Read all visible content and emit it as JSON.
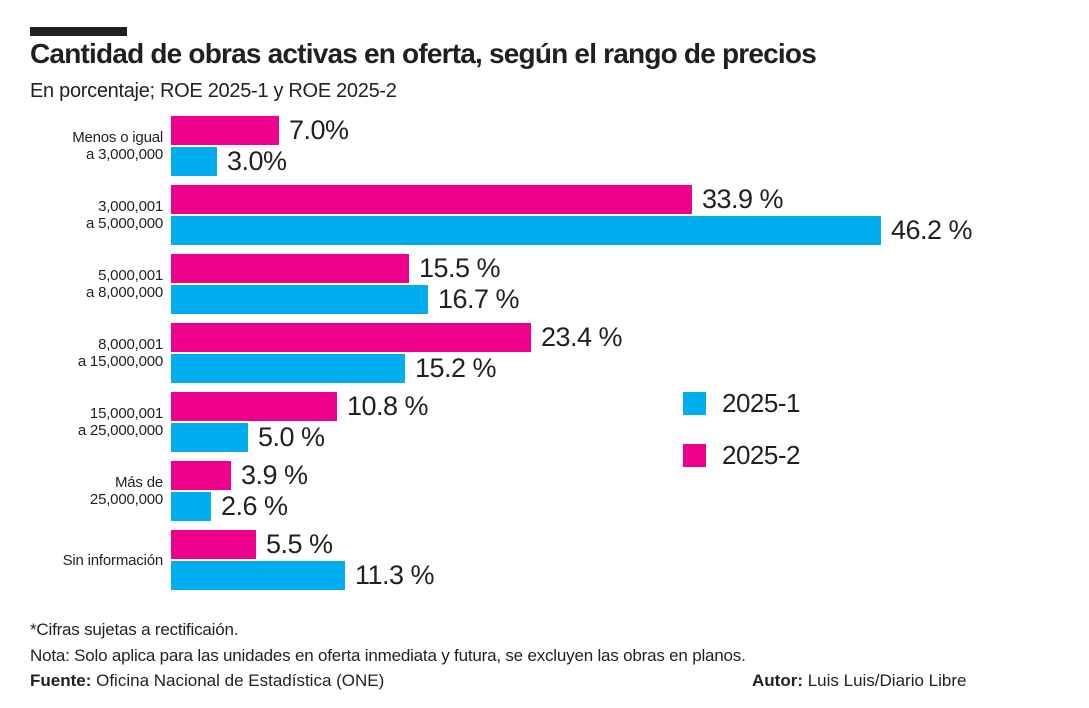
{
  "header": {
    "title": "Cantidad de obras activas en oferta, según el rango de precios",
    "subtitle": "En porcentaje; ROE 2025-1 y ROE 2025-2"
  },
  "colors": {
    "accent_bar": "#231F20",
    "text": "#231F20",
    "series_2025_1": "#00AEEF",
    "series_2025_2": "#EC008C"
  },
  "chart_data": {
    "type": "bar",
    "orientation": "horizontal",
    "title": "Cantidad de obras activas en oferta, según el rango de precios",
    "subtitle": "En porcentaje; ROE 2025-1 y ROE 2025-2",
    "xlim": [
      0,
      48
    ],
    "grid": false,
    "legend_position": "middle-right",
    "categories": [
      {
        "lines": [
          "Menos o igual",
          "a 3,000,000"
        ]
      },
      {
        "lines": [
          "3,000,001",
          "a 5,000,000"
        ]
      },
      {
        "lines": [
          "5,000,001",
          "a 8,000,000"
        ]
      },
      {
        "lines": [
          "8,000,001",
          "a 15,000,000"
        ]
      },
      {
        "lines": [
          "15,000,001",
          "a 25,000,000"
        ]
      },
      {
        "lines": [
          "Más de",
          "25,000,000"
        ]
      },
      {
        "lines": [
          "Sin información"
        ]
      }
    ],
    "series": [
      {
        "name": "2025-2",
        "color": "#EC008C",
        "values": [
          7.0,
          33.9,
          15.5,
          23.4,
          10.8,
          3.9,
          5.5
        ],
        "value_labels": [
          "7.0%",
          "33.9 %",
          "15.5 %",
          "23.4 %",
          "10.8 %",
          "3.9 %",
          "5.5 %"
        ]
      },
      {
        "name": "2025-1",
        "color": "#00AEEF",
        "values": [
          3.0,
          46.2,
          16.7,
          15.2,
          5.0,
          2.6,
          11.3
        ],
        "value_labels": [
          "3.0%",
          "46.2 %",
          "16.7 %",
          "15.2 %",
          "5.0 %",
          "2.6 %",
          "11.3 %"
        ]
      }
    ]
  },
  "legend": {
    "items": [
      {
        "label": "2025-1",
        "color": "#00AEEF"
      },
      {
        "label": "2025-2",
        "color": "#EC008C"
      }
    ]
  },
  "footer": {
    "footnote": "*Cifras sujetas a rectificaión.",
    "note": "Nota: Solo aplica para las unidades en oferta inmediata y futura, se excluyen las obras en planos.",
    "source_label": "Fuente:",
    "source_value": " Oficina Nacional de Estadística (ONE)",
    "author_label": "Autor:",
    "author_value": " Luis Luis/Diario Libre"
  }
}
